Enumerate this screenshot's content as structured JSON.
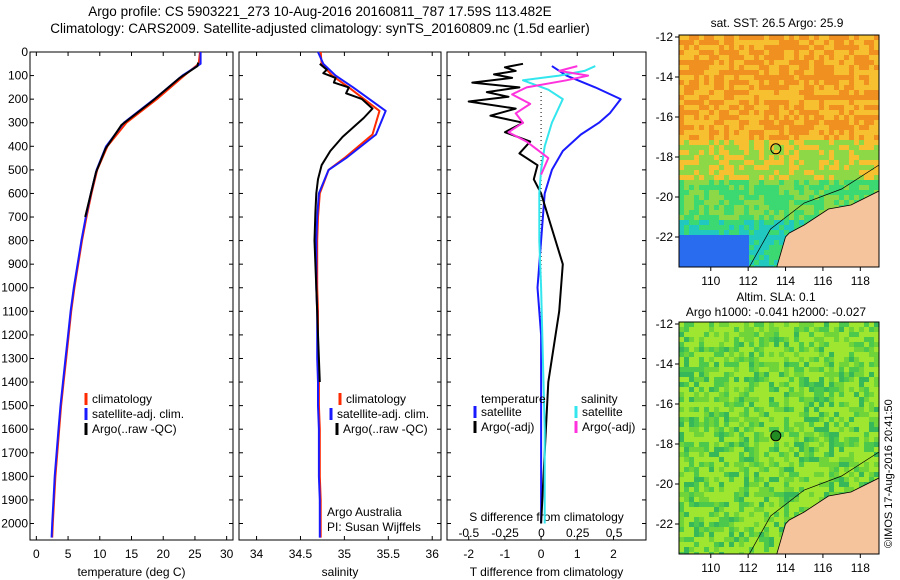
{
  "header": {
    "line1": "Argo profile: CS 5903221_273 10-Aug-2016 20160811_787 17.59S 113.482E",
    "line2": "Climatology: CARS2009. Satellite-adjusted climatology: synTS_20160809.nc (1.5d earlier)"
  },
  "footer": {
    "timestamp": "©IMOS 17-Aug-2016 20:41:50"
  },
  "colors": {
    "climatology": "#ff2a00",
    "satellite_adj": "#1a1aff",
    "argo": "#000000",
    "satellite_salinity": "#33e6ee",
    "argo_salinity": "#ff33dd",
    "land": "#f6c49c",
    "marker_fill": "#228b22"
  },
  "chart_data": [
    {
      "type": "line",
      "xlabel": "temperature (deg C)",
      "xlim": [
        -1,
        31
      ],
      "xticks": [
        0,
        5,
        10,
        15,
        20,
        25,
        30
      ],
      "ylim": [
        2070,
        0
      ],
      "yticks": [
        0,
        100,
        200,
        300,
        400,
        500,
        600,
        700,
        800,
        900,
        1000,
        1100,
        1200,
        1300,
        1400,
        1500,
        1600,
        1700,
        1800,
        1900,
        2000
      ],
      "series": [
        {
          "name": "climatology",
          "color": "#ff2a00",
          "x": [
            25.8,
            25.6,
            23.3,
            19.0,
            14.2,
            11.2,
            9.6,
            8.7,
            7.9,
            7.2,
            6.6,
            6.0,
            5.5,
            5.1,
            4.7,
            4.3,
            3.9,
            3.6,
            3.3,
            3.0,
            2.8,
            2.6,
            2.5
          ],
          "y": [
            0,
            50,
            100,
            200,
            300,
            400,
            500,
            600,
            700,
            800,
            900,
            1000,
            1100,
            1200,
            1300,
            1400,
            1500,
            1600,
            1700,
            1800,
            1900,
            2000,
            2060
          ]
        },
        {
          "name": "satellite-adj. clim.",
          "color": "#1a1aff",
          "x": [
            25.9,
            25.9,
            23.0,
            18.6,
            13.8,
            11.0,
            9.5,
            8.6,
            7.8,
            7.1,
            6.5,
            5.9,
            5.4,
            5.0,
            4.6,
            4.2,
            3.8,
            3.5,
            3.2,
            2.9,
            2.7,
            2.5,
            2.4
          ],
          "y": [
            0,
            50,
            100,
            200,
            300,
            400,
            500,
            600,
            700,
            800,
            900,
            1000,
            1100,
            1200,
            1300,
            1400,
            1500,
            1600,
            1700,
            1800,
            1900,
            2000,
            2060
          ]
        },
        {
          "name": "Argo(..raw -QC)",
          "color": "#000000",
          "x": [
            25.5,
            25.4,
            22.6,
            18.2,
            13.4,
            10.9,
            9.4,
            8.5,
            7.7
          ],
          "y": [
            45,
            60,
            110,
            210,
            310,
            410,
            510,
            610,
            700
          ]
        }
      ]
    },
    {
      "type": "line",
      "xlabel": "salinity",
      "xlim": [
        33.8,
        36.1
      ],
      "xticks": [
        34,
        34.5,
        35,
        35.5,
        36
      ],
      "ylim": [
        2070,
        0
      ],
      "series": [
        {
          "name": "climatology",
          "color": "#ff2a00",
          "x": [
            34.73,
            34.74,
            34.86,
            35.05,
            35.4,
            35.32,
            35.0,
            34.82,
            34.72,
            34.7,
            34.69,
            34.69,
            34.69,
            34.7,
            34.7,
            34.7,
            34.71,
            34.71,
            34.72,
            34.72,
            34.72,
            34.73,
            34.73
          ],
          "y": [
            0,
            50,
            100,
            150,
            250,
            350,
            450,
            500,
            600,
            700,
            800,
            900,
            1000,
            1100,
            1200,
            1300,
            1400,
            1500,
            1600,
            1700,
            1800,
            1900,
            2060
          ]
        },
        {
          "name": "satellite-adj. clim.",
          "color": "#1a1aff",
          "x": [
            34.7,
            34.76,
            34.9,
            35.1,
            35.47,
            35.36,
            35.02,
            34.82,
            34.71,
            34.69,
            34.68,
            34.68,
            34.68,
            34.69,
            34.69,
            34.69,
            34.7,
            34.7,
            34.71,
            34.71,
            34.71,
            34.72,
            34.72
          ],
          "y": [
            0,
            50,
            100,
            150,
            250,
            350,
            450,
            500,
            600,
            700,
            800,
            900,
            1000,
            1100,
            1200,
            1300,
            1400,
            1500,
            1600,
            1700,
            1800,
            1900,
            2060
          ]
        },
        {
          "name": "Argo(..raw -QC)",
          "color": "#000000",
          "x": [
            34.72,
            34.8,
            34.76,
            34.9,
            34.88,
            35.05,
            35.02,
            35.2,
            35.32,
            35.22,
            35.1,
            34.98,
            34.84,
            34.74,
            34.7,
            34.68,
            34.67,
            34.66,
            34.68,
            34.7,
            34.72
          ],
          "y": [
            50,
            75,
            90,
            110,
            130,
            150,
            175,
            200,
            240,
            280,
            320,
            360,
            420,
            480,
            540,
            600,
            680,
            800,
            1000,
            1200,
            1400
          ]
        }
      ]
    },
    {
      "type": "line",
      "xlabel": "T difference from climatology",
      "xlabel_top": "S difference from climatology",
      "xlim": [
        -2.6,
        2.9
      ],
      "xticks": [
        -2,
        -1,
        0,
        1,
        2
      ],
      "xticks_top": [
        -0.5,
        -0.25,
        0,
        0.25,
        0.5
      ],
      "ylim": [
        2070,
        0
      ],
      "legend_temperature": "temperature",
      "legend_salinity": "salinity",
      "series": [
        {
          "name": "satellite",
          "color": "#1a1aff",
          "x": [
            0.3,
            0.7,
            1.5,
            2.2,
            1.9,
            1.6,
            1.1,
            0.6,
            0.3,
            0.1,
            0.05,
            0.0,
            -0.05,
            -0.1,
            -0.05,
            0.0,
            0.0,
            0.0,
            0.0,
            0.0
          ],
          "y": [
            60,
            100,
            150,
            200,
            260,
            300,
            350,
            420,
            500,
            600,
            700,
            800,
            900,
            1000,
            1100,
            1200,
            1300,
            1500,
            1700,
            2000
          ]
        },
        {
          "name": "Argo(-adj)",
          "color": "#000000",
          "x": [
            -0.5,
            -1.0,
            -0.7,
            -1.3,
            -0.8,
            -1.9,
            -0.6,
            -1.5,
            -0.9,
            -2.0,
            -0.7,
            -1.4,
            -0.5,
            -1.0,
            -0.3,
            -0.6,
            -0.1,
            -0.2,
            0.0,
            0.2,
            0.6,
            0.5,
            0.2,
            0.1,
            0.0
          ],
          "y": [
            50,
            65,
            80,
            95,
            110,
            130,
            150,
            170,
            190,
            210,
            240,
            270,
            300,
            340,
            380,
            430,
            480,
            540,
            600,
            700,
            900,
            1100,
            1400,
            1700,
            2000
          ]
        },
        {
          "name": "satellite",
          "color": "#33e6ee",
          "x": [
            1.5,
            1.2,
            0.5,
            -0.5,
            0.2,
            0.6,
            0.3,
            0.1,
            0.0,
            -0.05,
            -0.05,
            0.0,
            0.05,
            0.1,
            0.1,
            0.1
          ],
          "y": [
            60,
            80,
            100,
            120,
            160,
            200,
            300,
            400,
            500,
            600,
            800,
            1000,
            1300,
            1600,
            1900,
            2000
          ]
        },
        {
          "name": "Argo(-adj)",
          "color": "#ff33dd",
          "x": [
            1.0,
            0.5,
            1.3,
            0.7,
            -0.4,
            -0.8,
            -0.3,
            -0.7,
            -0.5,
            -0.9,
            -0.4,
            0.2,
            0.0
          ],
          "y": [
            60,
            80,
            100,
            120,
            150,
            180,
            220,
            260,
            300,
            340,
            380,
            450,
            520
          ]
        }
      ]
    }
  ],
  "legend": {
    "climatology": "climatology",
    "satellite_clim": "satellite-adj. clim.",
    "argo_raw": "Argo(..raw -QC)",
    "temperature": "temperature",
    "salinity": "salinity",
    "satellite": "satellite",
    "argo_adj": "Argo(-adj)"
  },
  "annotation": {
    "line1": "Argo Australia",
    "line2": "PI: Susan Wijffels"
  },
  "maps": [
    {
      "title": "sat. SST: 26.5 Argo: 25.9",
      "xlim": [
        108.3,
        119.0
      ],
      "ylim": [
        -23.5,
        -11.9
      ],
      "xticks": [
        110,
        112,
        114,
        116,
        118
      ],
      "yticks": [
        -12,
        -14,
        -16,
        -18,
        -20,
        -22
      ],
      "marker": {
        "lon": 113.48,
        "lat": -17.59
      },
      "palette": [
        "#f09020",
        "#f6c030",
        "#8cd846",
        "#3cd872",
        "#20c8c0",
        "#2a6cf0"
      ]
    },
    {
      "title_line1": "Altim. SLA: 0.1",
      "title_line2": "Argo h1000: -0.041 h2000: -0.027",
      "xlim": [
        108.3,
        119.0
      ],
      "ylim": [
        -23.5,
        -11.9
      ],
      "xticks": [
        110,
        112,
        114,
        116,
        118
      ],
      "yticks": [
        -12,
        -14,
        -16,
        -18,
        -20,
        -22
      ],
      "marker": {
        "lon": 113.48,
        "lat": -17.59
      },
      "palette": [
        "#9fe630",
        "#6fd43a",
        "#4cc84c",
        "#36b85a"
      ]
    }
  ]
}
